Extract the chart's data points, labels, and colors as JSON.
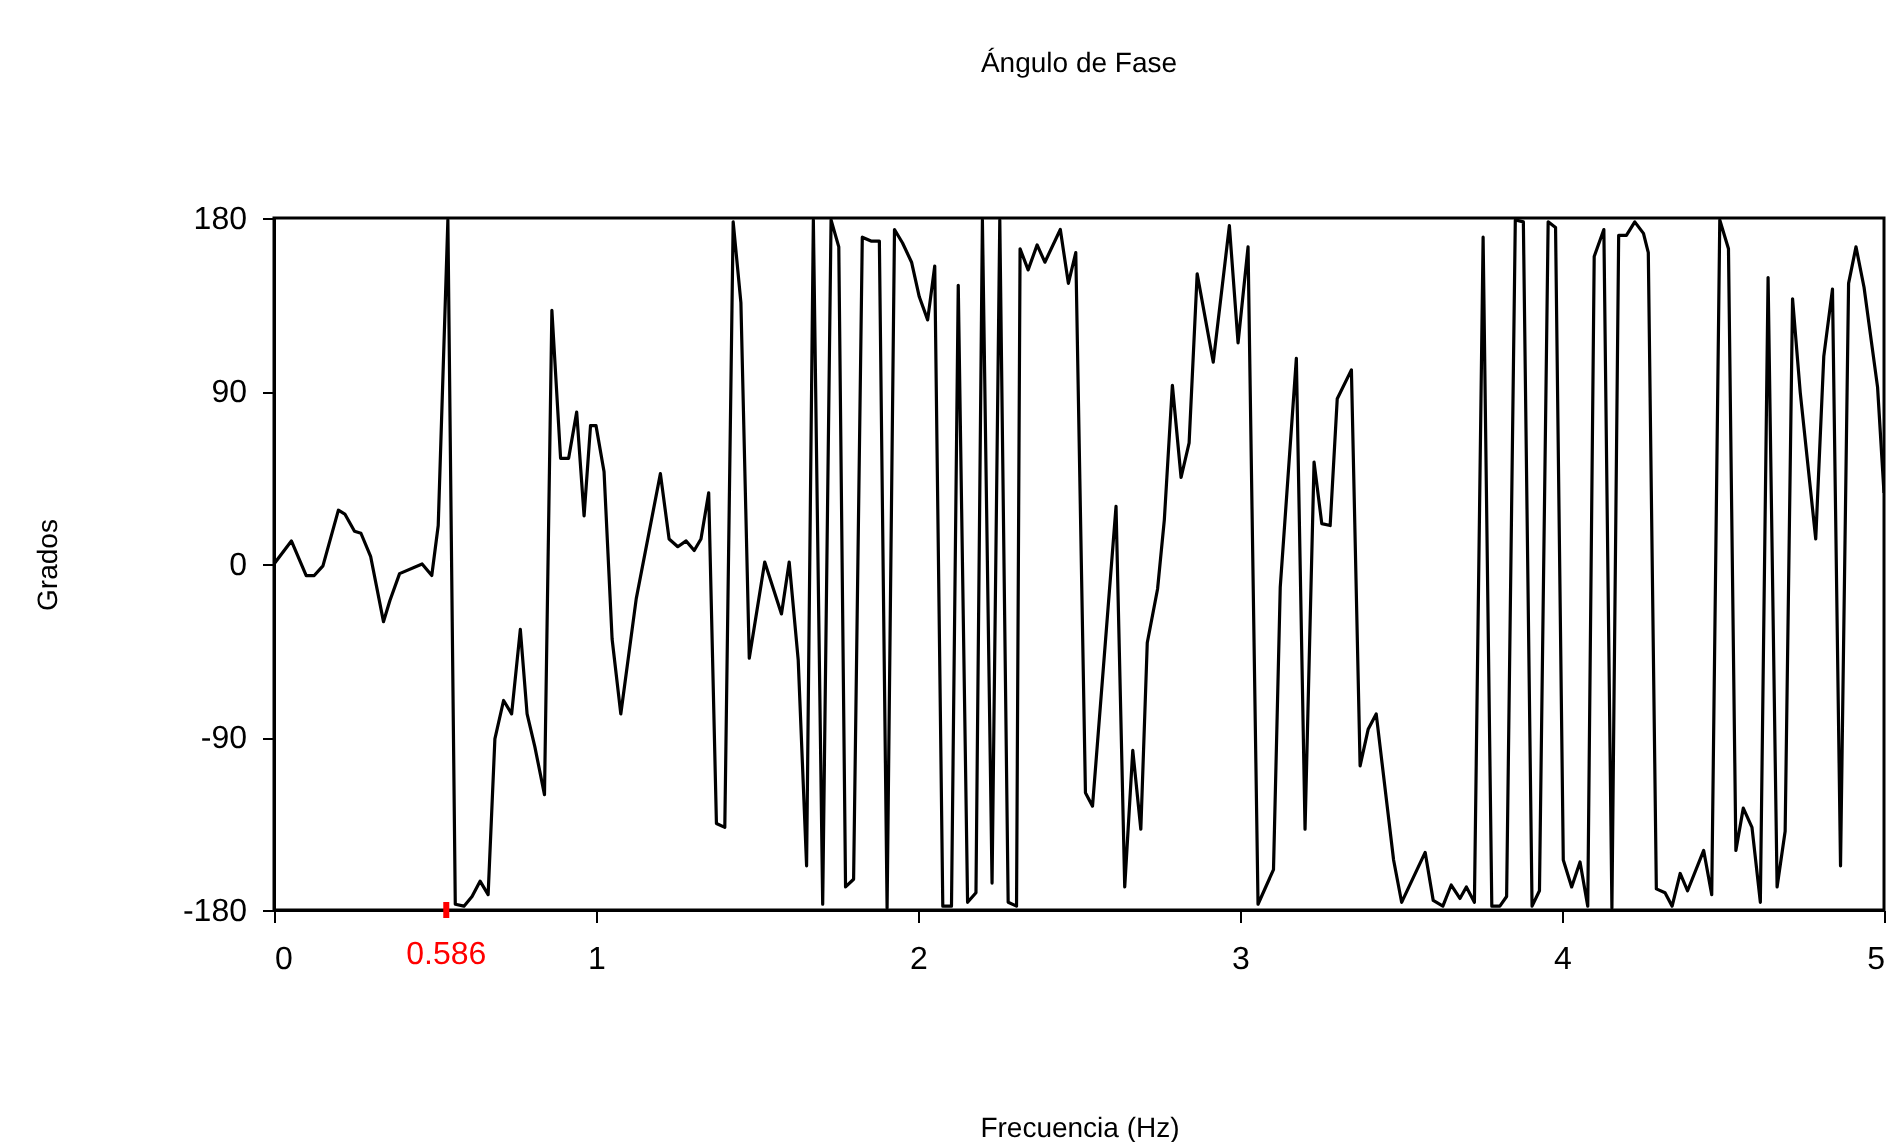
{
  "chart_data": {
    "type": "line",
    "title": "Ángulo de Fase",
    "xlabel": "Frecuencia (Hz)",
    "ylabel": "Grados",
    "xlim": [
      0,
      5
    ],
    "xticks": [
      0,
      1,
      2,
      3,
      4,
      5
    ],
    "ylim": [
      -180,
      180
    ],
    "yticks": [
      -180,
      -90,
      0,
      90,
      180
    ],
    "grid": false,
    "marker": "none",
    "line_style": "solid",
    "annotations": [
      "0.586"
    ],
    "series": [
      {
        "color": "#000000",
        "x": [
          0,
          0.054,
          0.1,
          0.125,
          0.152,
          0.2,
          0.22,
          0.25,
          0.27,
          0.3,
          0.34,
          0.36,
          0.39,
          0.46,
          0.49,
          0.51,
          0.54,
          0.563,
          0.59,
          0.615,
          0.64,
          0.665,
          0.686,
          0.713,
          0.738,
          0.765,
          0.786,
          0.81,
          0.84,
          0.863,
          0.89,
          0.915,
          0.94,
          0.963,
          0.983,
          1.0,
          1.025,
          1.05,
          1.077,
          1.125,
          1.2,
          1.227,
          1.254,
          1.28,
          1.305,
          1.326,
          1.35,
          1.374,
          1.4,
          1.426,
          1.45,
          1.476,
          1.524,
          1.576,
          1.6,
          1.628,
          1.654,
          1.675,
          1.704,
          1.73,
          1.754,
          1.775,
          1.8,
          1.827,
          1.854,
          1.88,
          1.904,
          1.927,
          1.952,
          1.98,
          2.004,
          2.03,
          2.052,
          2.077,
          2.104,
          2.125,
          2.154,
          2.18,
          2.2,
          2.23,
          2.254,
          2.28,
          2.306,
          2.317,
          2.342,
          2.37,
          2.394,
          2.442,
          2.467,
          2.49,
          2.52,
          2.542,
          2.615,
          2.642,
          2.667,
          2.692,
          2.712,
          2.744,
          2.765,
          2.79,
          2.817,
          2.842,
          2.867,
          2.917,
          2.967,
          2.994,
          3.025,
          3.056,
          3.104,
          3.125,
          3.175,
          3.202,
          3.23,
          3.254,
          3.28,
          3.302,
          3.346,
          3.373,
          3.398,
          3.423,
          3.477,
          3.502,
          3.575,
          3.6,
          3.63,
          3.656,
          3.683,
          3.703,
          3.728,
          3.755,
          3.782,
          3.807,
          3.828,
          3.855,
          3.88,
          3.907,
          3.93,
          3.957,
          3.98,
          4.004,
          4.03,
          4.056,
          4.08,
          4.1,
          4.13,
          4.155,
          4.176,
          4.2,
          4.226,
          4.253,
          4.268,
          4.293,
          4.32,
          4.342,
          4.367,
          4.39,
          4.44,
          4.465,
          4.49,
          4.517,
          4.54,
          4.563,
          4.59,
          4.616,
          4.64,
          4.668,
          4.693,
          4.716,
          4.74,
          4.788,
          4.813,
          4.84,
          4.865,
          4.89,
          4.913,
          4.938,
          4.98,
          5.0
        ],
        "values": [
          0,
          12,
          -6,
          -6,
          -1,
          28,
          26,
          17,
          16,
          4,
          -30,
          -19,
          -5,
          0,
          -6,
          20,
          179,
          -177,
          -178,
          -173,
          -165,
          -172,
          -91,
          -71,
          -78,
          -34,
          -78,
          -95,
          -120,
          132,
          55,
          55,
          79,
          25,
          72,
          72,
          48,
          -39,
          -78,
          -18,
          47,
          13,
          9,
          12,
          7,
          13,
          37,
          -135,
          -137,
          178,
          136,
          -49,
          1,
          -26,
          1,
          -50,
          -157,
          179,
          -177,
          179,
          165,
          -168,
          -164,
          170,
          168,
          168,
          -179,
          174,
          167,
          157,
          139,
          127,
          155,
          -178,
          -178,
          145,
          -176,
          -171,
          179,
          -166,
          179,
          -176,
          -178,
          164,
          153,
          166,
          157,
          174,
          146,
          162,
          -119,
          -126,
          30,
          -168,
          -97,
          -138,
          -41,
          -13,
          23,
          93,
          45,
          63,
          151,
          105,
          176,
          115,
          165,
          -177,
          -159,
          -12,
          107,
          -138,
          53,
          21,
          20,
          86,
          101,
          -105,
          -86,
          -78,
          -154,
          -176,
          -150,
          -175,
          -178,
          -167,
          -174,
          -168,
          -176,
          170,
          -178,
          -178,
          -173,
          179,
          178,
          -178,
          -170,
          178,
          175,
          -154,
          -168,
          -155,
          -178,
          160,
          174,
          -179,
          171,
          171,
          178,
          172,
          162,
          -169,
          -171,
          -178,
          -161,
          -170,
          -149,
          -172,
          179,
          164,
          -149,
          -127,
          -137,
          -176,
          149,
          -168,
          -139,
          138,
          89,
          13,
          108,
          143,
          -157,
          146,
          165,
          144,
          92,
          37
        ]
      }
    ]
  }
}
